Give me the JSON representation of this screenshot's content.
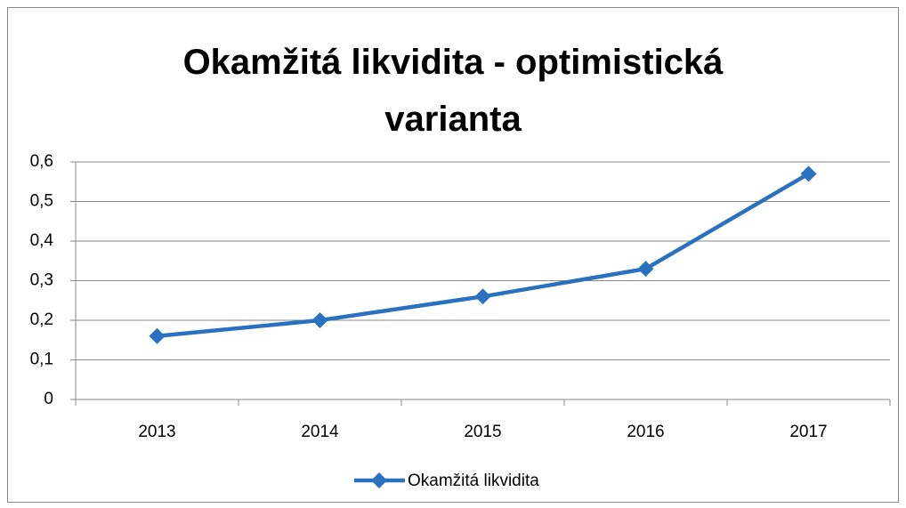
{
  "chart_data": {
    "type": "line",
    "title": "Okamžitá likvidita - optimistická varianta",
    "categories": [
      "2013",
      "2014",
      "2015",
      "2016",
      "2017"
    ],
    "series": [
      {
        "name": "Okamžitá likvidita",
        "color": "#2a72c0",
        "values": [
          0.16,
          0.2,
          0.26,
          0.33,
          0.57
        ]
      }
    ],
    "ylim": [
      0,
      0.6
    ],
    "yticks": [
      0,
      {
        "value": 0.1,
        "label": "0,1"
      },
      {
        "value": 0.2,
        "label": "0,2"
      },
      {
        "value": 0.3,
        "label": "0,3"
      },
      {
        "value": 0.4,
        "label": "0,4"
      },
      {
        "value": 0.5,
        "label": "0,5"
      },
      {
        "value": 0.6,
        "label": "0,6"
      }
    ],
    "grid": true,
    "legend": "bottom"
  }
}
